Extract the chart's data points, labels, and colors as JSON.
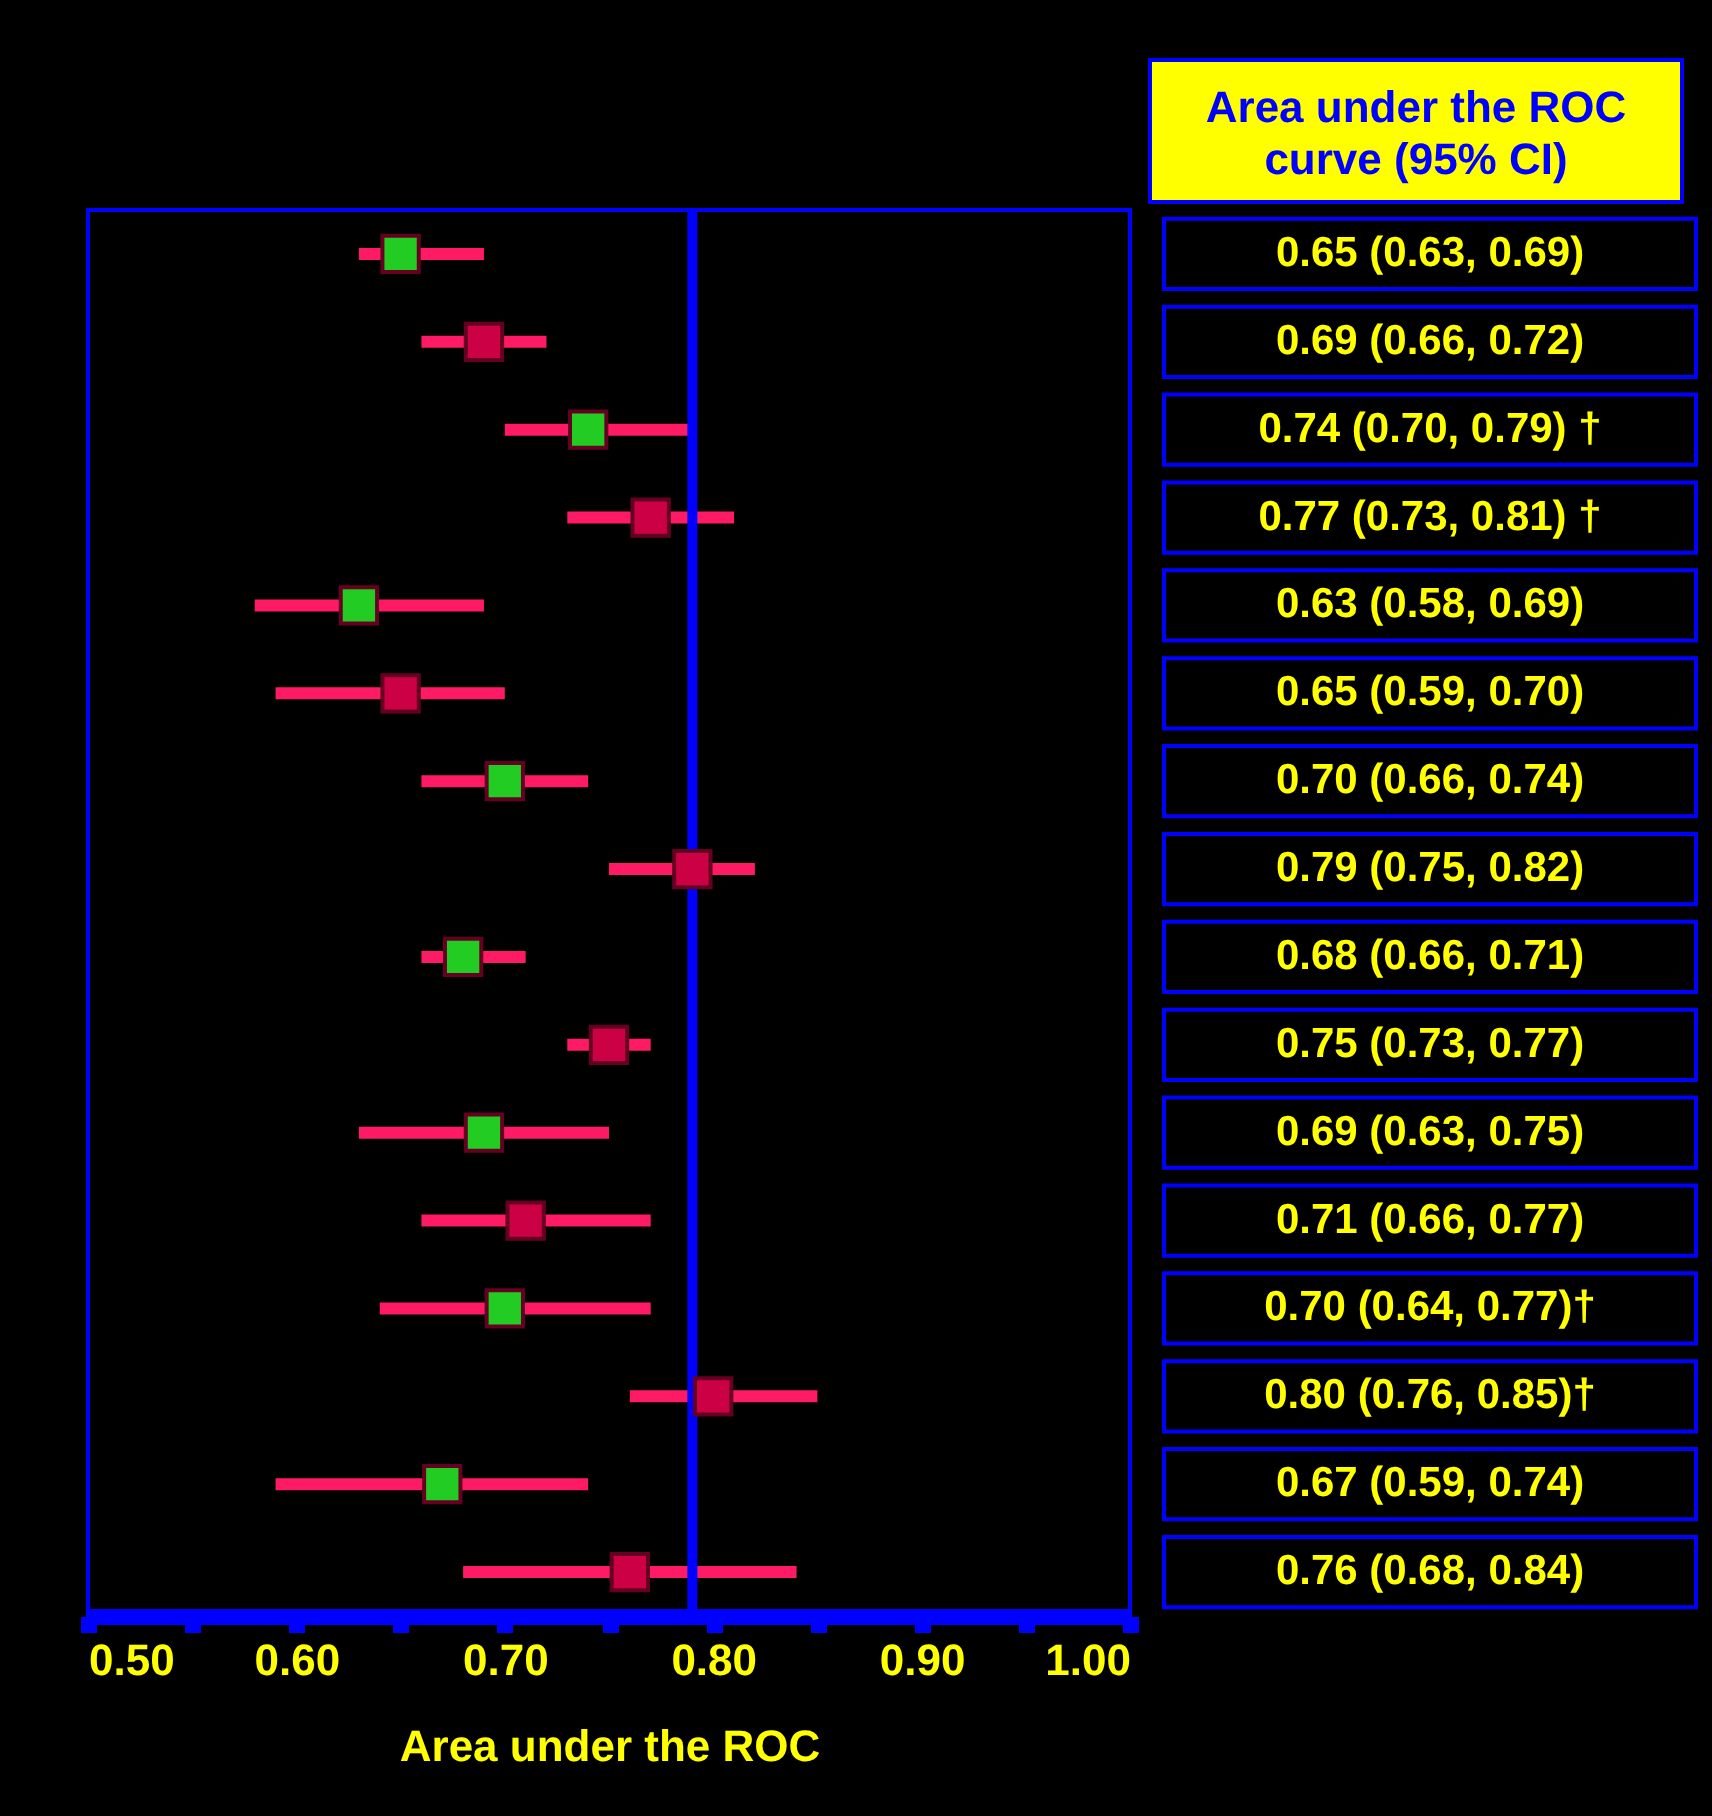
{
  "chart_data": {
    "type": "scatter",
    "orientation": "horizontal",
    "xlabel": "Area under the ROC",
    "annotations": [
      "Area under the ROC curve (95% CI)"
    ],
    "categories": [
      null,
      null,
      null,
      null,
      null,
      null,
      null,
      null,
      null,
      null,
      null,
      null,
      null,
      null,
      null,
      null
    ],
    "values": [
      0.65,
      0.69,
      0.74,
      0.77,
      0.63,
      0.65,
      0.7,
      0.79,
      0.68,
      0.75,
      0.69,
      0.71,
      0.7,
      0.8,
      0.67,
      0.76
    ],
    "errors": [
      [
        0.63,
        0.69
      ],
      [
        0.66,
        0.72
      ],
      [
        0.7,
        0.79
      ],
      [
        0.73,
        0.81
      ],
      [
        0.58,
        0.69
      ],
      [
        0.59,
        0.7
      ],
      [
        0.66,
        0.74
      ],
      [
        0.75,
        0.82
      ],
      [
        0.66,
        0.71
      ],
      [
        0.73,
        0.77
      ],
      [
        0.63,
        0.75
      ],
      [
        0.66,
        0.77
      ],
      [
        0.64,
        0.77
      ],
      [
        0.76,
        0.85
      ],
      [
        0.59,
        0.74
      ],
      [
        0.68,
        0.84
      ]
    ],
    "colors": [
      "#22cc22",
      "#cc0044",
      "#22cc22",
      "#cc0044",
      "#22cc22",
      "#cc0044",
      "#22cc22",
      "#cc0044",
      "#22cc22",
      "#cc0044",
      "#22cc22",
      "#cc0044",
      "#22cc22",
      "#cc0044",
      "#22cc22",
      "#cc0044"
    ],
    "value_labels": [
      "0.65 (0.63, 0.69)",
      "0.69 (0.66, 0.72)",
      "0.74 (0.70, 0.79) †",
      "0.77 (0.73, 0.81) †",
      "0.63 (0.58, 0.69)",
      "0.65 (0.59, 0.70)",
      "0.70 (0.66, 0.74)",
      "0.79 (0.75, 0.82)",
      "0.68 (0.66, 0.71)",
      "0.75 (0.73, 0.77)",
      "0.69 (0.63, 0.75)",
      "0.71 (0.66, 0.77)",
      "0.70 (0.64, 0.77)†",
      "0.80 (0.76, 0.85)†",
      "0.67 (0.59, 0.74)",
      "0.76 (0.68, 0.84)"
    ],
    "xlim": [
      0.5,
      1.0
    ],
    "xticks": [
      {
        "value": 0.5,
        "label": "0.50"
      },
      {
        "value": 0.55,
        "label": null
      },
      {
        "value": 0.6,
        "label": "0.60"
      },
      {
        "value": 0.65,
        "label": null
      },
      {
        "value": 0.7,
        "label": "0.70"
      },
      {
        "value": 0.75,
        "label": null
      },
      {
        "value": 0.8,
        "label": "0.80"
      },
      {
        "value": 0.85,
        "label": null
      },
      {
        "value": 0.9,
        "label": "0.90"
      },
      {
        "value": 0.95,
        "label": null
      },
      {
        "value": 1.0,
        "label": "1.00"
      }
    ],
    "ref_lines": [
      {
        "axis": "x",
        "value": 0.79,
        "label": null,
        "color": "#0000ff"
      }
    ],
    "marker": "square",
    "grid": false,
    "legend": false,
    "tick_labels": "x"
  }
}
